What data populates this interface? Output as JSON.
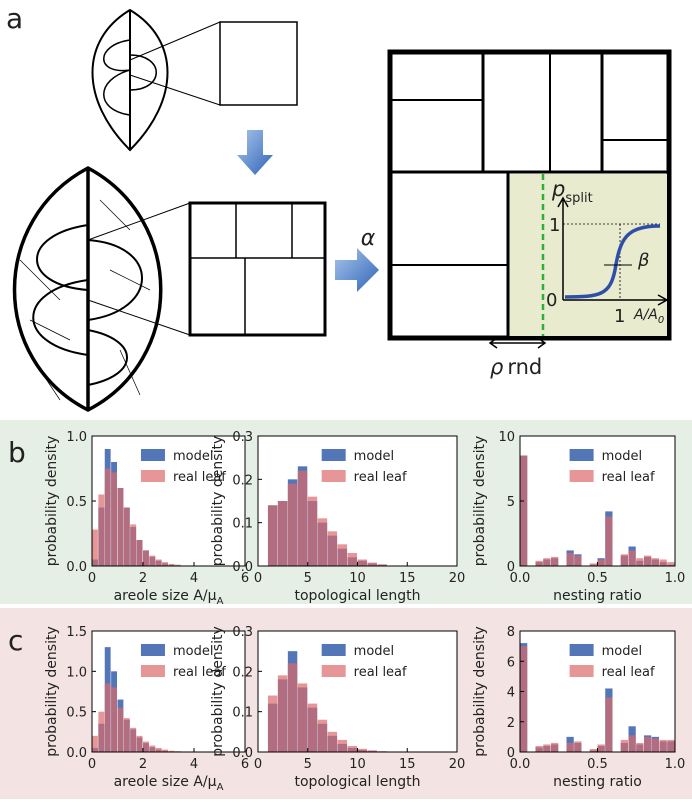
{
  "figure": {
    "panel_a": "a",
    "panel_b": "b",
    "panel_c": "c",
    "alpha": "α",
    "rho": "ρ",
    "rnd": "rnd",
    "p": "p",
    "split": "split",
    "beta": "β",
    "inset_x": "A/A",
    "inset_x_sub": "0",
    "inset_one_y": "1",
    "inset_zero": "0",
    "inset_one_x": "1"
  },
  "chart_data": [
    {
      "type": "histogram",
      "ylabel": "probability density",
      "xlabel": "areole size A/μ",
      "xlabel_sub": "A",
      "bins": [
        0,
        0.25,
        0.5,
        0.75,
        1,
        1.25,
        1.5,
        1.75,
        2,
        2.25,
        2.5,
        2.75,
        3,
        3.25,
        3.5
      ],
      "series": [
        {
          "name": "model",
          "color": "#4a6fb5",
          "values": [
            0.05,
            0.45,
            0.9,
            0.8,
            0.6,
            0.45,
            0.3,
            0.2,
            0.12,
            0.07,
            0.04,
            0.02,
            0.01,
            0.005
          ]
        },
        {
          "name": "real leaf",
          "color": "#dc6a6a",
          "values": [
            0.28,
            0.55,
            0.75,
            0.72,
            0.6,
            0.45,
            0.32,
            0.2,
            0.12,
            0.08,
            0.05,
            0.03,
            0.015,
            0.01
          ]
        }
      ],
      "xlim": [
        0,
        6
      ],
      "xticks": [
        0,
        2,
        4,
        6
      ],
      "ylim": [
        0,
        1
      ],
      "yticks": [
        {
          "value": 0,
          "label": "0.0"
        },
        {
          "value": 0.5,
          "label": "0.5"
        },
        {
          "value": 1,
          "label": "1.0"
        }
      ]
    },
    {
      "type": "histogram",
      "ylabel": "probability density",
      "xlabel": "topological length",
      "bins": [
        1,
        2,
        3,
        4,
        5,
        6,
        7,
        8,
        9,
        10,
        11,
        12,
        13
      ],
      "series": [
        {
          "name": "model",
          "color": "#4a6fb5",
          "values": [
            0.14,
            0.15,
            0.2,
            0.23,
            0.15,
            0.1,
            0.07,
            0.04,
            0.02,
            0.012,
            0.006,
            0.003
          ]
        },
        {
          "name": "real leaf",
          "color": "#dc6a6a",
          "values": [
            0.14,
            0.15,
            0.19,
            0.22,
            0.16,
            0.11,
            0.08,
            0.05,
            0.03,
            0.015,
            0.008,
            0.004
          ]
        }
      ],
      "xlim": [
        0,
        20
      ],
      "xticks": [
        0,
        5,
        10,
        15,
        20
      ],
      "ylim": [
        0,
        0.3
      ],
      "yticks": [
        {
          "value": 0,
          "label": "0.0"
        },
        0.1,
        0.2,
        0.3
      ]
    },
    {
      "type": "histogram",
      "ylabel": "probability density",
      "xlabel": "nesting ratio",
      "bins": [
        0,
        0.05,
        0.1,
        0.15,
        0.2,
        0.25,
        0.3,
        0.35,
        0.4,
        0.45,
        0.5,
        0.55,
        0.6,
        0.65,
        0.7,
        0.75,
        0.8,
        0.85,
        0.9,
        0.95,
        1
      ],
      "series": [
        {
          "name": "model",
          "color": "#4a6fb5",
          "values": [
            8.5,
            0,
            0.3,
            0.5,
            0.6,
            0,
            1.2,
            0.9,
            0,
            0.1,
            0.6,
            4.2,
            0,
            0.8,
            1.5,
            0.4,
            0.7,
            0.5,
            0.3,
            0.1
          ]
        },
        {
          "name": "real leaf",
          "color": "#dc6a6a",
          "values": [
            8.5,
            0,
            0.4,
            0.6,
            0.7,
            0,
            1,
            0.8,
            0,
            0.2,
            0.5,
            3.8,
            0,
            0.9,
            1.2,
            0.6,
            0.8,
            0.6,
            0.5,
            0.3
          ]
        }
      ],
      "xlim": [
        0,
        1
      ],
      "xticks": [
        {
          "value": 0,
          "label": "0.0"
        },
        0.5,
        {
          "value": 1,
          "label": "1.0"
        }
      ],
      "ylim": [
        0,
        10
      ],
      "yticks": [
        0,
        5,
        10
      ]
    },
    {
      "type": "histogram",
      "ylabel": "probability density",
      "xlabel": "areole size A/μ",
      "xlabel_sub": "A",
      "bins": [
        0,
        0.25,
        0.5,
        0.75,
        1,
        1.25,
        1.5,
        1.75,
        2,
        2.25,
        2.5,
        2.75,
        3,
        3.25,
        3.5
      ],
      "series": [
        {
          "name": "model",
          "color": "#4a6fb5",
          "values": [
            0.05,
            0.35,
            1.3,
            1.0,
            0.65,
            0.4,
            0.28,
            0.18,
            0.11,
            0.06,
            0.03,
            0.015,
            0.008,
            0.004
          ]
        },
        {
          "name": "real leaf",
          "color": "#dc6a6a",
          "values": [
            0.2,
            0.5,
            0.85,
            0.8,
            0.55,
            0.42,
            0.3,
            0.2,
            0.13,
            0.08,
            0.05,
            0.03,
            0.015,
            0.01
          ]
        }
      ],
      "xlim": [
        0,
        6
      ],
      "xticks": [
        0,
        2,
        4,
        6
      ],
      "ylim": [
        0,
        1.5
      ],
      "yticks": [
        {
          "value": 0,
          "label": "0.0"
        },
        0.5,
        {
          "value": 1,
          "label": "1.0"
        },
        1.5
      ]
    },
    {
      "type": "histogram",
      "ylabel": "probability density",
      "xlabel": "topological length",
      "bins": [
        1,
        2,
        3,
        4,
        5,
        6,
        7,
        8,
        9,
        10,
        11,
        12,
        13
      ],
      "series": [
        {
          "name": "model",
          "color": "#4a6fb5",
          "values": [
            0.12,
            0.18,
            0.25,
            0.16,
            0.11,
            0.07,
            0.04,
            0.02,
            0.01,
            0.005,
            0.003,
            0.001
          ]
        },
        {
          "name": "real leaf",
          "color": "#dc6a6a",
          "values": [
            0.14,
            0.19,
            0.22,
            0.17,
            0.12,
            0.08,
            0.05,
            0.03,
            0.015,
            0.008,
            0.004,
            0.002
          ]
        }
      ],
      "xlim": [
        0,
        20
      ],
      "xticks": [
        0,
        5,
        10,
        15,
        20
      ],
      "ylim": [
        0,
        0.3
      ],
      "yticks": [
        {
          "value": 0,
          "label": "0.0"
        },
        0.1,
        0.2,
        0.3
      ]
    },
    {
      "type": "histogram",
      "ylabel": "probability density",
      "xlabel": "nesting ratio",
      "bins": [
        0,
        0.05,
        0.1,
        0.15,
        0.2,
        0.25,
        0.3,
        0.35,
        0.4,
        0.45,
        0.5,
        0.55,
        0.6,
        0.65,
        0.7,
        0.75,
        0.8,
        0.85,
        0.9,
        0.95,
        1
      ],
      "series": [
        {
          "name": "model",
          "color": "#4a6fb5",
          "values": [
            7.2,
            0,
            0.3,
            0.4,
            0.5,
            0,
            1,
            0.6,
            0,
            0.1,
            0.4,
            4.2,
            0,
            0.6,
            1.7,
            0.5,
            1.1,
            1,
            0.7,
            0.7
          ]
        },
        {
          "name": "real leaf",
          "color": "#dc6a6a",
          "values": [
            7,
            0,
            0.4,
            0.5,
            0.6,
            0,
            0.6,
            0.7,
            0,
            0.2,
            0.5,
            3.6,
            0,
            0.8,
            1.1,
            0.6,
            1,
            0.9,
            0.8,
            0.8
          ]
        }
      ],
      "xlim": [
        0,
        1
      ],
      "xticks": [
        {
          "value": 0,
          "label": "0.0"
        },
        0.5,
        {
          "value": 1,
          "label": "1.0"
        }
      ],
      "ylim": [
        0,
        8
      ],
      "yticks": [
        0,
        2,
        4,
        6,
        8
      ]
    }
  ]
}
